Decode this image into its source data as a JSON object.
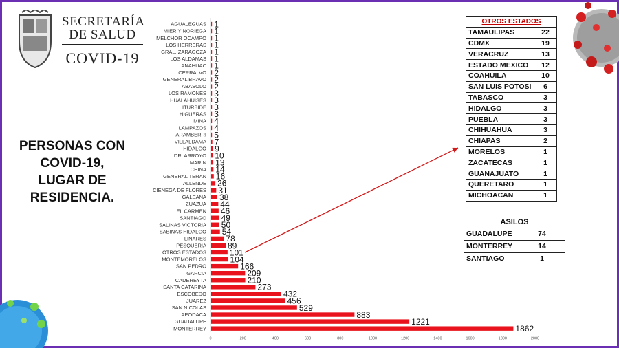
{
  "header": {
    "org_line1": "SECRETARÍA",
    "org_line2": "DE SALUD",
    "program": "COVID-19"
  },
  "headline": [
    "PERSONAS CON",
    "COVID-19,",
    "LUGAR DE",
    "RESIDENCIA."
  ],
  "colors": {
    "bar": "#e8131c",
    "frame": "#6b2fb3",
    "arrow": "#d11a1a"
  },
  "chart_data": {
    "type": "bar",
    "orientation": "horizontal",
    "categories": [
      "AGUALEGUAS",
      "MIER Y NORIEGA",
      "MELCHOR OCAMPO",
      "LOS HERRERAS",
      "GRAL. ZARAGOZA",
      "LOS ALDAMAS",
      "ANAHUAC",
      "CERRALVO",
      "GENERAL BRAVO",
      "ABASOLO",
      "LOS RAMONES",
      "HUALAHUISES",
      "ITURBIDE",
      "HIGUERAS",
      "MINA",
      "LAMPAZOS",
      "ARAMBERRI",
      "VILLALDAMA",
      "HIDALGO",
      "DR. ARROYO",
      "MARIN",
      "CHINA",
      "GENERAL TERAN",
      "ALLENDE",
      "CIENEGA DE FLORES",
      "GALEANA",
      "ZUAZUA",
      "EL CARMEN",
      "SANTIAGO",
      "SALINAS VICTORIA",
      "SABINAS HIDALGO",
      "LINARES",
      "PESQUERIA",
      "OTROS ESTADOS",
      "MONTEMORELOS",
      "SAN PEDRO",
      "GARCIA",
      "CADEREYTA",
      "SANTA CATARINA",
      "ESCOBEDO",
      "JUAREZ",
      "SAN NICOLAS",
      "APODACA",
      "GUADALUPE",
      "MONTERREY"
    ],
    "values": [
      1,
      1,
      1,
      1,
      1,
      1,
      1,
      2,
      2,
      2,
      3,
      3,
      3,
      3,
      4,
      4,
      5,
      7,
      9,
      10,
      13,
      14,
      16,
      26,
      31,
      38,
      44,
      46,
      49,
      50,
      54,
      78,
      89,
      101,
      104,
      166,
      209,
      210,
      273,
      432,
      456,
      529,
      883,
      1221,
      1862
    ],
    "xlim": [
      0,
      2000
    ],
    "xticks": [
      "0",
      "200",
      "400",
      "600",
      "800",
      "1000",
      "1200",
      "1400",
      "1600",
      "1800",
      "2000"
    ],
    "title": "",
    "xlabel": "",
    "ylabel": "",
    "grid": false,
    "annotation": "arrow from OTROS ESTADOS to OTROS ESTADOS table"
  },
  "otros_estados": {
    "title": "OTROS ESTADOS",
    "rows": [
      {
        "state": "TAMAULIPAS",
        "count": "22"
      },
      {
        "state": "CDMX",
        "count": "19"
      },
      {
        "state": "VERACRUZ",
        "count": "13"
      },
      {
        "state": "ESTADO MEXICO",
        "count": "12"
      },
      {
        "state": "COAHUILA",
        "count": "10"
      },
      {
        "state": "SAN LUIS POTOSI",
        "count": "6"
      },
      {
        "state": "TABASCO",
        "count": "3"
      },
      {
        "state": "HIDALGO",
        "count": "3"
      },
      {
        "state": "PUEBLA",
        "count": "3"
      },
      {
        "state": "CHIHUAHUA",
        "count": "3"
      },
      {
        "state": "CHIAPAS",
        "count": "2"
      },
      {
        "state": "MORELOS",
        "count": "1"
      },
      {
        "state": "ZACATECAS",
        "count": "1"
      },
      {
        "state": "GUANAJUATO",
        "count": "1"
      },
      {
        "state": "QUERETARO",
        "count": "1"
      },
      {
        "state": "MICHOACAN",
        "count": "1"
      }
    ]
  },
  "asilos": {
    "title": "ASILOS",
    "rows": [
      {
        "place": "GUADALUPE",
        "count": "74"
      },
      {
        "place": "MONTERREY",
        "count": "14"
      },
      {
        "place": "SANTIAGO",
        "count": "1"
      }
    ]
  }
}
